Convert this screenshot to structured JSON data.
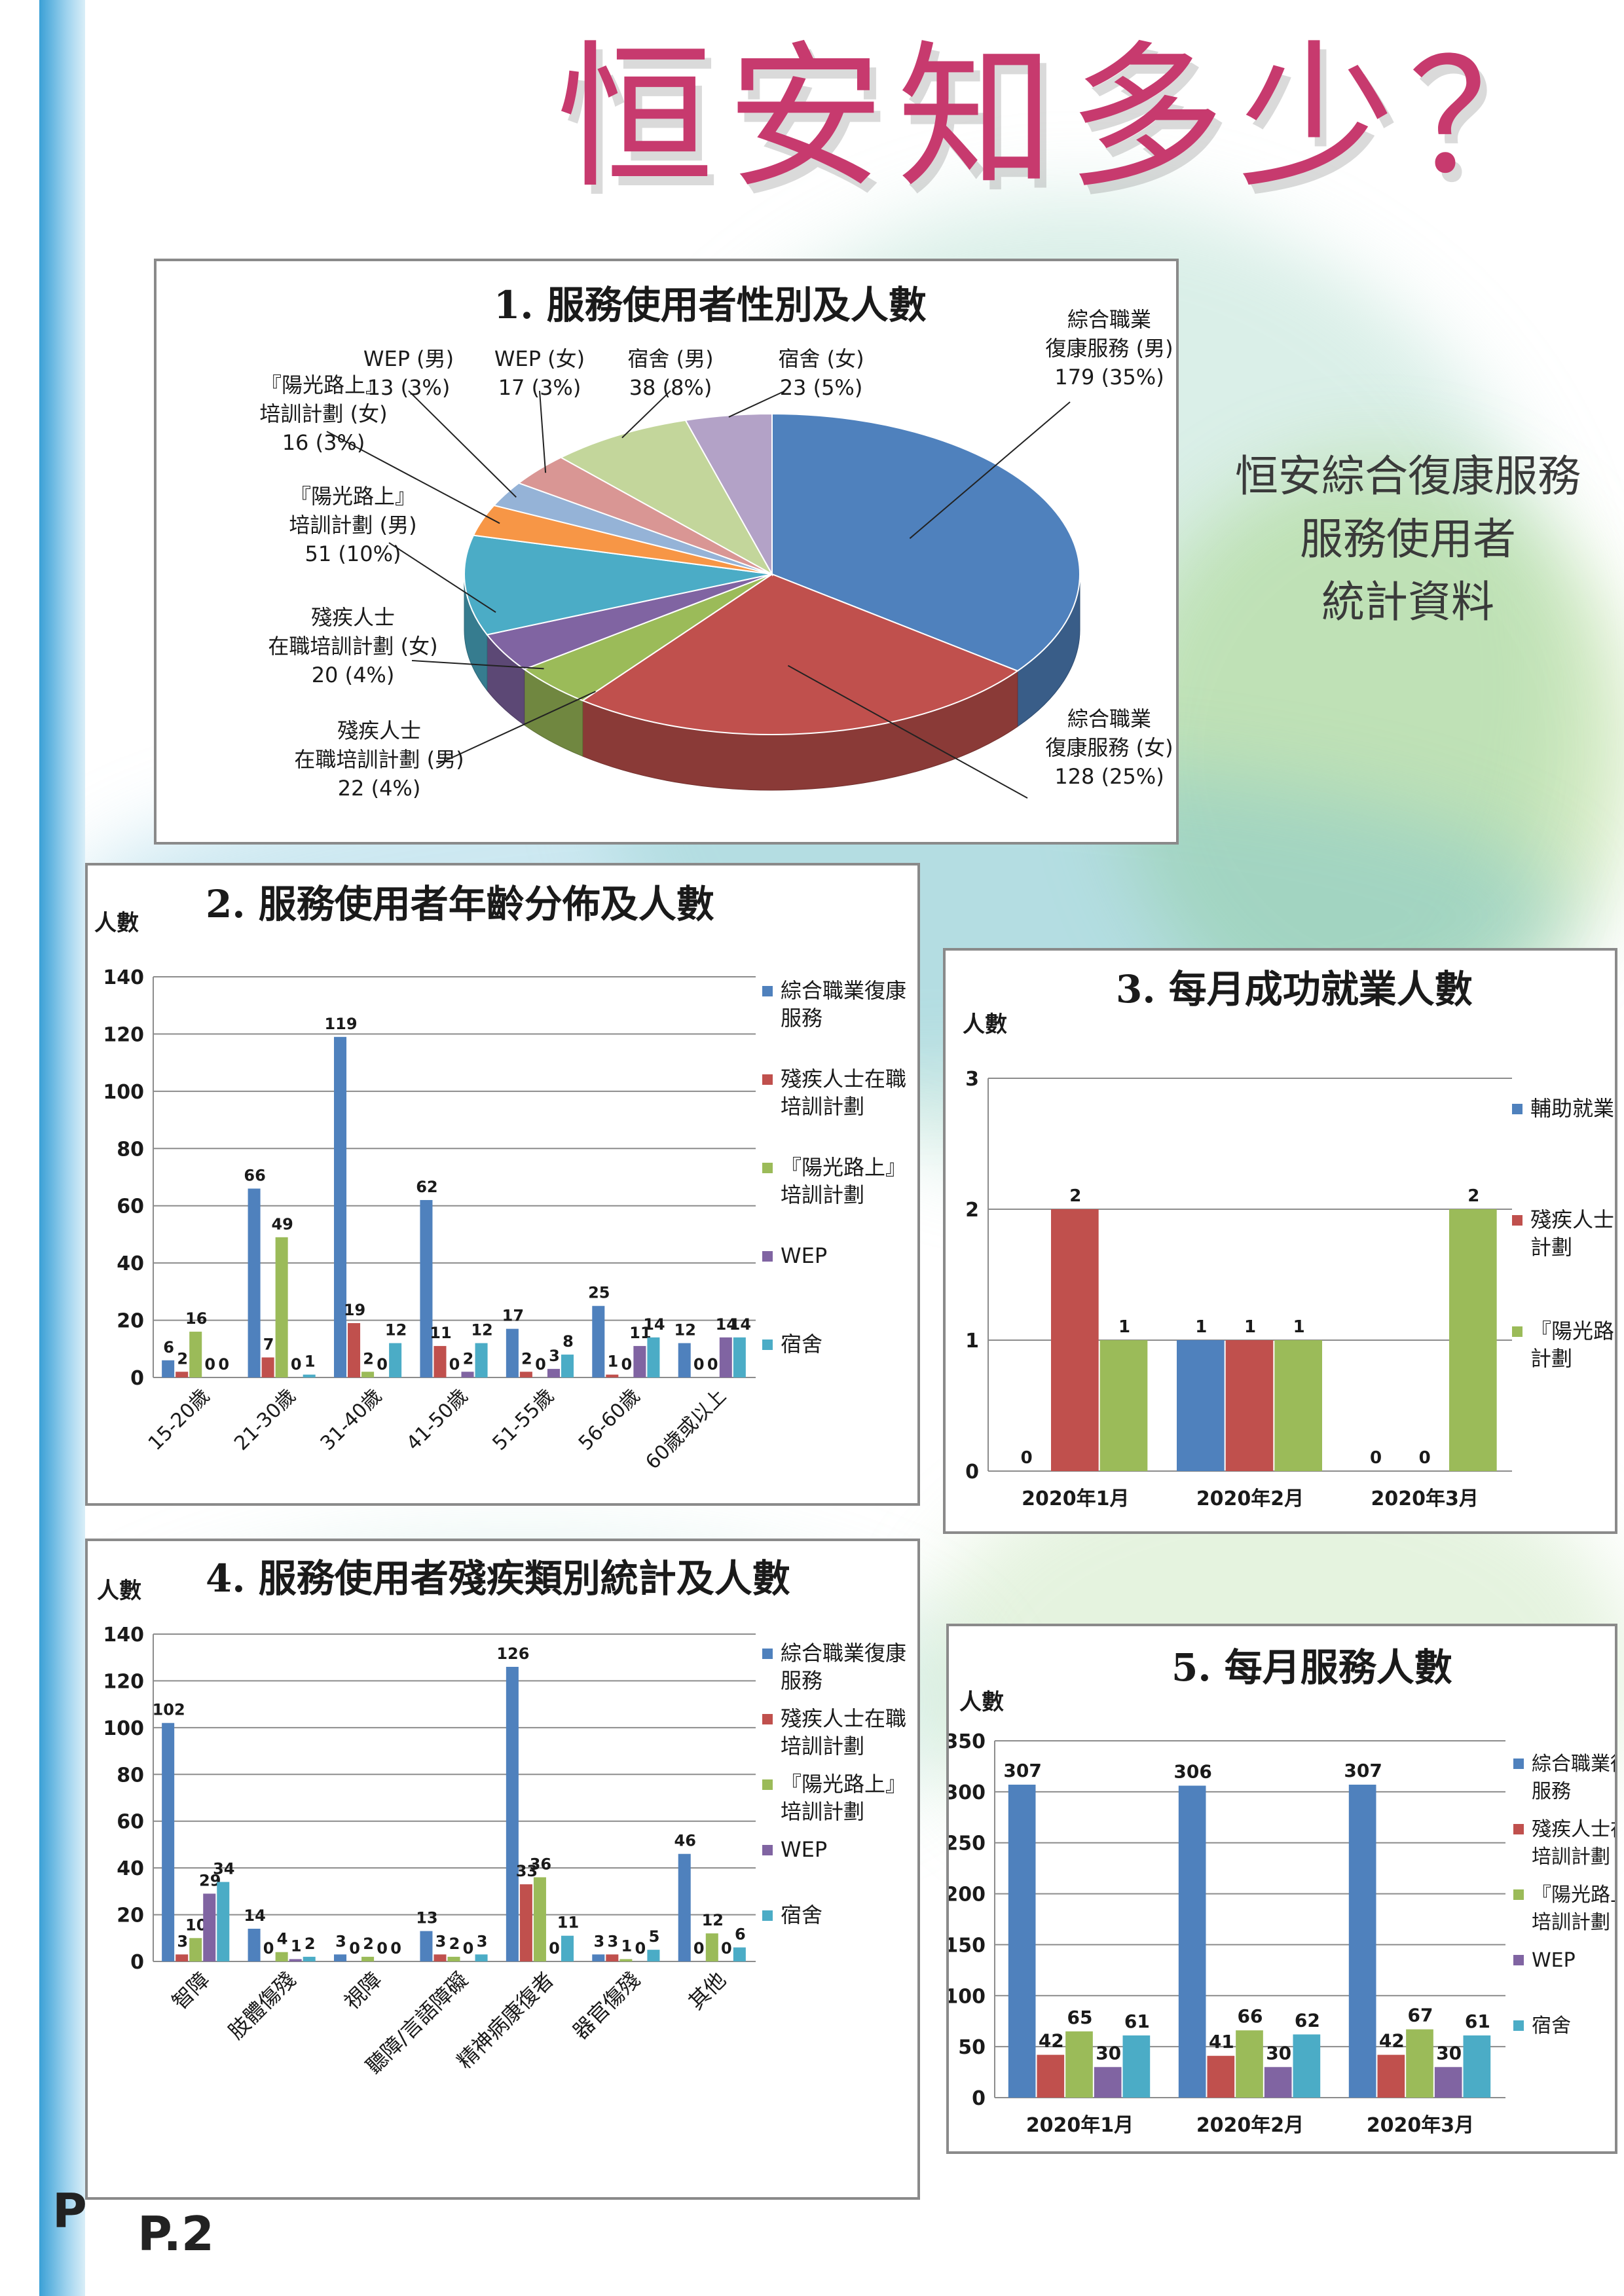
{
  "page": {
    "title": "恒安知多少？",
    "side_note": [
      "恒安綜合復康服務",
      "服務使用者",
      "統計資料"
    ],
    "page_number": "P.2",
    "page_letter": "P"
  },
  "colors": {
    "blue": "#4f81bd",
    "red": "#c0504d",
    "green": "#9bbb59",
    "purple": "#8064a2",
    "teal": "#4bacc6",
    "orange": "#f79646",
    "lightblue": "#95b3d7",
    "pink": "#d99694",
    "lightgreen": "#c3d69b",
    "lavender": "#b3a2c7"
  },
  "chart_data": [
    {
      "type": "pie",
      "title": "1. 服務使用者性別及人數",
      "slices": [
        {
          "label": "綜合職業復康服務 (男)",
          "value": 179,
          "pct": "35%",
          "color": "#4f81bd"
        },
        {
          "label": "綜合職業復康服務 (女)",
          "value": 128,
          "pct": "25%",
          "color": "#c0504d"
        },
        {
          "label": "殘疾人士在職培訓計劃 (男)",
          "value": 22,
          "pct": "4%",
          "color": "#9bbb59"
        },
        {
          "label": "殘疾人士在職培訓計劃 (女)",
          "value": 20,
          "pct": "4%",
          "color": "#8064a2"
        },
        {
          "label": "『陽光路上』培訓計劃 (男)",
          "value": 51,
          "pct": "10%",
          "color": "#4bacc6"
        },
        {
          "label": "『陽光路上』培訓計劃 (女)",
          "value": 16,
          "pct": "3%",
          "color": "#f79646"
        },
        {
          "label": "WEP (男)",
          "value": 13,
          "pct": "3%",
          "color": "#95b3d7"
        },
        {
          "label": "WEP (女)",
          "value": 17,
          "pct": "3%",
          "color": "#d99694"
        },
        {
          "label": "宿舍 (男)",
          "value": 38,
          "pct": "8%",
          "color": "#c3d69b"
        },
        {
          "label": "宿舍 (女)",
          "value": 23,
          "pct": "5%",
          "color": "#b3a2c7"
        }
      ],
      "callouts": [
        {
          "lines": [
            "綜合職業",
            "復康服務 (男)",
            "179 (35%)"
          ]
        },
        {
          "lines": [
            "綜合職業",
            "復康服務 (女)",
            "128 (25%)"
          ]
        },
        {
          "lines": [
            "殘疾人士",
            "在職培訓計劃 (男)",
            "22 (4%)"
          ]
        },
        {
          "lines": [
            "殘疾人士",
            "在職培訓計劃 (女)",
            "20 (4%)"
          ]
        },
        {
          "lines": [
            "『陽光路上』",
            "培訓計劃 (男)",
            "51 (10%)"
          ]
        },
        {
          "lines": [
            "『陽光路上』",
            "培訓計劃 (女)",
            "16 (3%)"
          ]
        },
        {
          "lines": [
            "WEP (男)",
            "13 (3%)"
          ]
        },
        {
          "lines": [
            "WEP (女)",
            "17 (3%)"
          ]
        },
        {
          "lines": [
            "宿舍 (男)",
            "38 (8%)"
          ]
        },
        {
          "lines": [
            "宿舍 (女)",
            "23 (5%)"
          ]
        }
      ]
    },
    {
      "type": "bar",
      "title": "2. 服務使用者年齡分佈及人數",
      "ylabel": "人數",
      "ylim": [
        0,
        140
      ],
      "yticks": [
        0,
        20,
        40,
        60,
        80,
        100,
        120,
        140
      ],
      "categories": [
        "15-20歲",
        "21-30歲",
        "31-40歲",
        "41-50歲",
        "51-55歲",
        "56-60歲",
        "60歲或以上"
      ],
      "series": [
        {
          "name": "綜合職業復康服務",
          "color": "#4f81bd",
          "values": [
            6,
            66,
            119,
            62,
            17,
            25,
            12
          ]
        },
        {
          "name": "殘疾人士在職培訓計劃",
          "color": "#c0504d",
          "values": [
            2,
            7,
            19,
            11,
            2,
            1,
            0
          ]
        },
        {
          "name": "『陽光路上』培訓計劃",
          "color": "#9bbb59",
          "values": [
            16,
            49,
            2,
            0,
            0,
            0,
            0
          ]
        },
        {
          "name": "WEP",
          "color": "#8064a2",
          "values": [
            0,
            0,
            0,
            2,
            3,
            11,
            14
          ]
        },
        {
          "name": "宿舍",
          "color": "#4bacc6",
          "values": [
            0,
            1,
            12,
            12,
            8,
            14,
            14
          ]
        }
      ]
    },
    {
      "type": "bar",
      "title": "3. 每月成功就業人數",
      "ylabel": "人數",
      "ylim": [
        0,
        3
      ],
      "yticks": [
        0,
        1,
        2,
        3
      ],
      "categories": [
        "2020年1月",
        "2020年2月",
        "2020年3月"
      ],
      "series": [
        {
          "name": "輔助就業",
          "color": "#4f81bd",
          "values": [
            0,
            1,
            0
          ]
        },
        {
          "name": "殘疾人士在培訓計劃",
          "color": "#c0504d",
          "values": [
            2,
            1,
            0
          ]
        },
        {
          "name": "『陽光路上培訓計劃",
          "color": "#9bbb59",
          "values": [
            1,
            1,
            2
          ]
        }
      ]
    },
    {
      "type": "bar",
      "title": "4. 服務使用者殘疾類別統計及人數",
      "ylabel": "人數",
      "ylim": [
        0,
        140
      ],
      "yticks": [
        0,
        20,
        40,
        60,
        80,
        100,
        120,
        140
      ],
      "categories": [
        "智障",
        "肢體傷殘",
        "視障",
        "聽障/言語障礙",
        "精神病康復者",
        "器官傷殘",
        "其他"
      ],
      "series": [
        {
          "name": "綜合職業復康服務",
          "color": "#4f81bd",
          "values": [
            102,
            14,
            3,
            13,
            126,
            3,
            46
          ]
        },
        {
          "name": "殘疾人士在職培訓計劃",
          "color": "#c0504d",
          "values": [
            3,
            0,
            0,
            3,
            33,
            3,
            0
          ]
        },
        {
          "name": "『陽光路上』培訓計劃",
          "color": "#9bbb59",
          "values": [
            10,
            4,
            2,
            2,
            36,
            1,
            12
          ]
        },
        {
          "name": "WEP",
          "color": "#8064a2",
          "values": [
            29,
            1,
            0,
            0,
            0,
            0,
            0
          ]
        },
        {
          "name": "宿舍",
          "color": "#4bacc6",
          "values": [
            34,
            2,
            0,
            3,
            11,
            5,
            6
          ]
        }
      ]
    },
    {
      "type": "bar",
      "title": "5. 每月服務人數",
      "ylabel": "人數",
      "ylim": [
        0,
        350
      ],
      "yticks": [
        0,
        50,
        100,
        150,
        200,
        250,
        300,
        350
      ],
      "categories": [
        "2020年1月",
        "2020年2月",
        "2020年3月"
      ],
      "series": [
        {
          "name": "綜合職業復服務",
          "color": "#4f81bd",
          "values": [
            307,
            306,
            307
          ]
        },
        {
          "name": "殘疾人士在培訓計劃",
          "color": "#c0504d",
          "values": [
            42,
            41,
            42
          ]
        },
        {
          "name": "『陽光路上培訓計劃",
          "color": "#9bbb59",
          "values": [
            65,
            66,
            67
          ]
        },
        {
          "name": "WEP",
          "color": "#8064a2",
          "values": [
            30,
            30,
            30
          ]
        },
        {
          "name": "宿舍",
          "color": "#4bacc6",
          "values": [
            61,
            62,
            61
          ]
        }
      ]
    }
  ]
}
